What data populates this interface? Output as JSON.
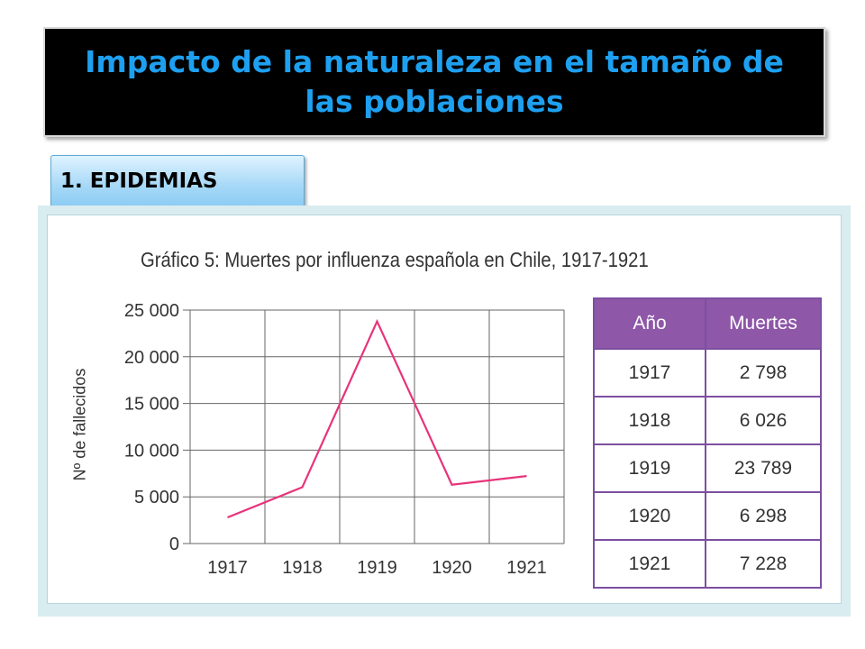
{
  "header": {
    "title": "Impacto de la naturaleza en el tamaño de las poblaciones"
  },
  "section": {
    "label": "1. EPIDEMIAS"
  },
  "colors": {
    "title_text": "#1ea0f0",
    "line": "#e8337a",
    "table_header": "#8e57a8",
    "table_border": "#7d4fa0",
    "panel": "#d9ecf0"
  },
  "chart_data": {
    "type": "line",
    "title": "Gráfico 5: Muertes por influenza española en Chile, 1917-1921",
    "xlabel": "",
    "ylabel": "Nº de fallecidos",
    "categories": [
      "1917",
      "1918",
      "1919",
      "1920",
      "1921"
    ],
    "series": [
      {
        "values": [
          2798,
          6026,
          23789,
          6298,
          7228
        ]
      }
    ],
    "ylim": [
      0,
      25000
    ],
    "yticks": [
      0,
      5000,
      10000,
      15000,
      20000,
      25000
    ],
    "ytick_labels": [
      "0",
      "5 000",
      "10 000",
      "15 000",
      "20 000",
      "25 000"
    ],
    "grid": true
  },
  "table": {
    "headers": [
      "Año",
      "Muertes"
    ],
    "rows": [
      [
        "1917",
        "2 798"
      ],
      [
        "1918",
        "6 026"
      ],
      [
        "1919",
        "23 789"
      ],
      [
        "1920",
        "6 298"
      ],
      [
        "1921",
        "7 228"
      ]
    ]
  }
}
